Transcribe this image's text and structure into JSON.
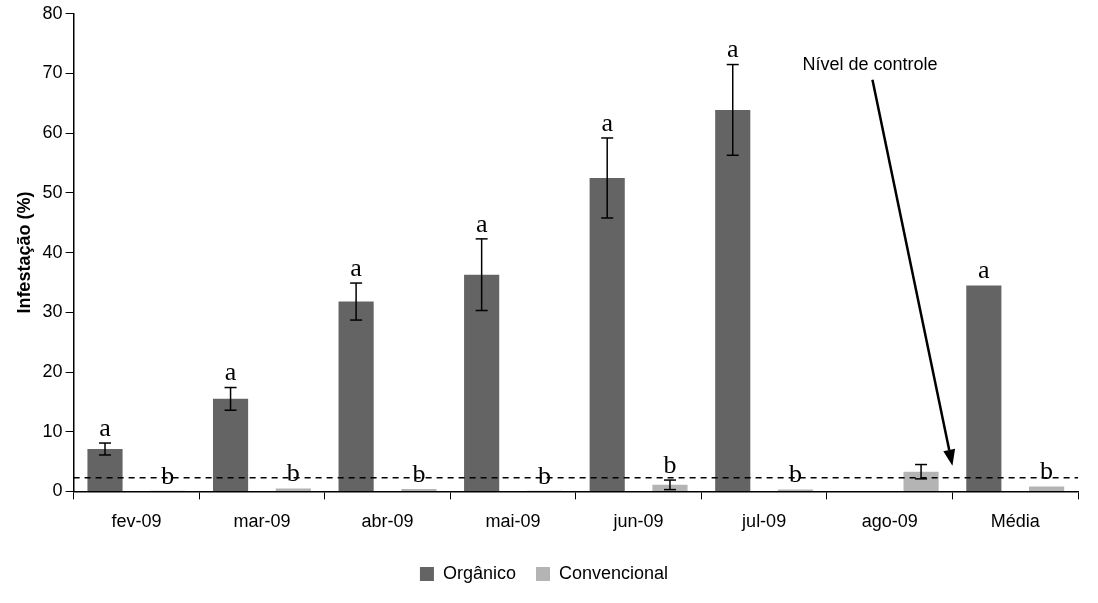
{
  "chart_data": {
    "type": "bar",
    "ylabel": "Infestação (%)",
    "categories": [
      "fev-09",
      "mar-09",
      "abr-09",
      "mai-09",
      "jun-09",
      "jul-09",
      "ago-09",
      "Média"
    ],
    "series": [
      {
        "name": "Orgânico",
        "color": "#646464",
        "values": [
          7.1,
          15.5,
          31.8,
          36.3,
          52.5,
          63.9,
          0,
          34.5
        ],
        "errors": [
          1.0,
          1.9,
          3.1,
          6.0,
          6.7,
          7.6,
          null,
          null
        ],
        "value_labels": [
          "a",
          "a",
          "a",
          "a",
          "a",
          "a",
          null,
          "a"
        ]
      },
      {
        "name": "Convencional",
        "color": "#b4b4b4",
        "values": [
          0.1,
          0.5,
          0.4,
          0.1,
          1.1,
          0.3,
          3.3,
          0.8
        ],
        "errors": [
          null,
          null,
          null,
          null,
          0.8,
          null,
          1.2,
          null
        ],
        "value_labels": [
          "b",
          "b",
          "b",
          "b",
          "b",
          "b",
          null,
          "b"
        ]
      }
    ],
    "ylim": [
      0,
      80
    ],
    "yticks": [
      0,
      10,
      20,
      30,
      40,
      50,
      60,
      70,
      80
    ],
    "ref_lines": [
      {
        "axis": "y",
        "value": 2.3,
        "line_style": "dashed",
        "color": "#000000"
      }
    ],
    "annotations": [
      "Nível de controle"
    ],
    "grid": false,
    "legend": "bottom"
  }
}
